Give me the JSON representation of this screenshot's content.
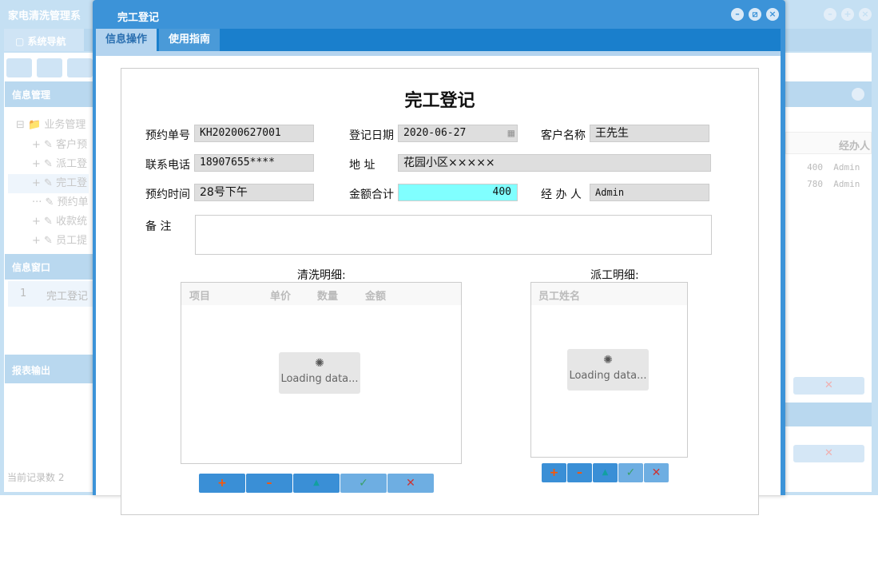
{
  "background": {
    "app_title": "家电清洗管理系",
    "nav_tab": "系统导航",
    "panel_info_mgmt": "信息管理",
    "tree": {
      "root": "业务管理",
      "items": [
        "客户预",
        "派工登",
        "完工登",
        "预约单",
        "收款统",
        "员工提"
      ]
    },
    "panel_info_window": "信息窗口",
    "window_list": [
      {
        "index": "1",
        "label": "完工登记"
      }
    ],
    "panel_report": "报表输出",
    "footer": "当前记录数 2",
    "table": {
      "header_handler": "经办人",
      "rows": [
        {
          "amount": "400",
          "handler": "Admin"
        },
        {
          "amount": "780",
          "handler": "Admin"
        }
      ]
    }
  },
  "modal": {
    "title": "完工登记",
    "tabs": [
      {
        "label": "信息操作",
        "active": true
      },
      {
        "label": "使用指南",
        "active": false
      }
    ],
    "form": {
      "heading": "完工登记",
      "fields": {
        "order_no": {
          "label": "预约单号",
          "value": "KH20200627001"
        },
        "reg_date": {
          "label": "登记日期",
          "value": "2020-06-27"
        },
        "customer": {
          "label": "客户名称",
          "value": "王先生"
        },
        "phone": {
          "label": "联系电话",
          "value": "18907655****"
        },
        "address": {
          "label": "地 址",
          "value": "花园小区×××××"
        },
        "appt_time": {
          "label": "预约时间",
          "value": "28号下午"
        },
        "total": {
          "label": "金额合计",
          "value": "400"
        },
        "handler": {
          "label": "经 办 人",
          "value": "Admin"
        },
        "remark": {
          "label": "备 注",
          "value": ""
        }
      },
      "cleaning": {
        "title": "清洗明细:",
        "columns": [
          "项目",
          "单价",
          "数量",
          "金额"
        ],
        "loading": "Loading data..."
      },
      "dispatch": {
        "title": "派工明细:",
        "columns": [
          "员工姓名"
        ],
        "loading": "Loading data..."
      },
      "buttons": [
        "add",
        "remove",
        "up",
        "confirm",
        "cancel"
      ]
    }
  },
  "colors": {
    "accent": "#3a8fd6",
    "total_field": "#80ffff",
    "add": "#ff5500",
    "confirm": "#3aa06a",
    "cancel": "#cc3333"
  }
}
